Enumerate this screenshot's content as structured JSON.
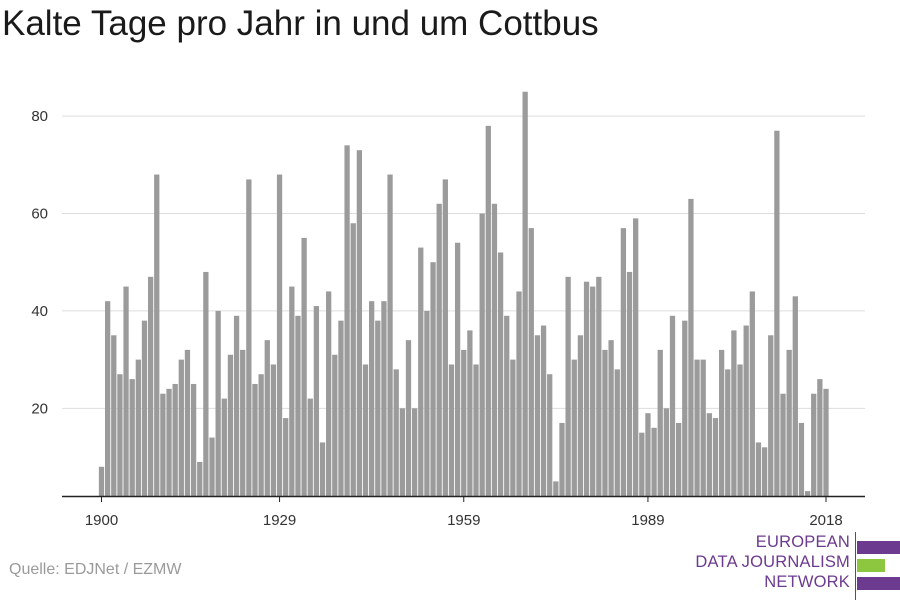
{
  "title": "Kalte Tage pro Jahr in und um Cottbus",
  "source": "Quelle: EDJNet / EZMW",
  "logo": {
    "lines": [
      "EUROPEAN",
      "DATA JOURNALISM",
      "NETWORK"
    ],
    "colors": {
      "purple": "#6c3a8e",
      "green": "#8dc63f"
    }
  },
  "chart_data": {
    "type": "bar",
    "title": "Kalte Tage pro Jahr in und um Cottbus",
    "xlabel": "",
    "ylabel": "",
    "x_start": 1900,
    "x_end": 2018,
    "x_ticks": [
      1900,
      1929,
      1959,
      1989,
      2018
    ],
    "y_ticks": [
      20,
      40,
      60,
      80
    ],
    "ylim": [
      2,
      87
    ],
    "grid": true,
    "bar_color": "#9b9b9b",
    "values": [
      8,
      42,
      35,
      27,
      45,
      26,
      30,
      38,
      47,
      68,
      23,
      24,
      25,
      30,
      32,
      25,
      9,
      48,
      14,
      40,
      22,
      31,
      39,
      32,
      67,
      25,
      27,
      34,
      29,
      68,
      18,
      45,
      39,
      55,
      22,
      41,
      13,
      44,
      31,
      38,
      74,
      58,
      73,
      29,
      42,
      38,
      42,
      68,
      28,
      20,
      34,
      20,
      53,
      40,
      50,
      62,
      67,
      29,
      54,
      32,
      36,
      29,
      60,
      78,
      62,
      52,
      39,
      30,
      44,
      85,
      57,
      35,
      37,
      27,
      5,
      17,
      47,
      30,
      35,
      46,
      45,
      47,
      32,
      34,
      28,
      57,
      48,
      59,
      15,
      19,
      16,
      32,
      20,
      39,
      17,
      38,
      63,
      30,
      30,
      19,
      18,
      32,
      28,
      36,
      29,
      37,
      44,
      13,
      12,
      35,
      77,
      23,
      32,
      43,
      17,
      3,
      23,
      26,
      24
    ]
  }
}
